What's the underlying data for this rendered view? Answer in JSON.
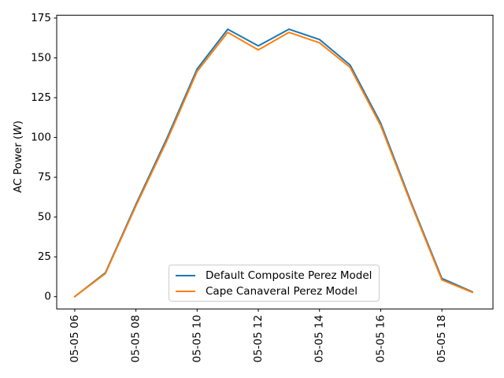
{
  "figure": {
    "background": "#ffffff",
    "axis_color": "#000000",
    "text_color": "#000000"
  },
  "chart_data": {
    "type": "line",
    "title": "",
    "xlabel": "",
    "ylabel": {
      "pre": "AC Power (",
      "var": "W",
      "post": ")"
    },
    "x_hours": [
      6,
      7,
      8,
      9,
      10,
      11,
      12,
      13,
      14,
      15,
      16,
      17,
      18,
      19
    ],
    "series": [
      {
        "name": "Default Composite Perez Model",
        "color": "#1f77b4",
        "values": [
          0,
          15,
          58,
          99,
          143,
          168,
          157.5,
          168,
          161.5,
          145.5,
          109,
          59,
          11.5,
          3
        ]
      },
      {
        "name": "Cape Canaveral Perez Model",
        "color": "#ff7f0e",
        "values": [
          0,
          14.5,
          57,
          97.5,
          141.5,
          166,
          155,
          166,
          159.5,
          144,
          107.5,
          58,
          10.5,
          2.7
        ]
      }
    ],
    "xticks": {
      "hours": [
        6,
        8,
        10,
        12,
        14,
        16,
        18
      ],
      "labels": [
        "05-05 06",
        "05-05 08",
        "05-05 10",
        "05-05 12",
        "05-05 14",
        "05-05 16",
        "05-05 18"
      ]
    },
    "yticks": [
      0,
      25,
      50,
      75,
      100,
      125,
      150,
      175
    ],
    "xlim": [
      5.41,
      19.67
    ],
    "ylim": [
      -7.7,
      176.8
    ],
    "grid": false,
    "legend_position": "lower center",
    "line_width": 2
  }
}
